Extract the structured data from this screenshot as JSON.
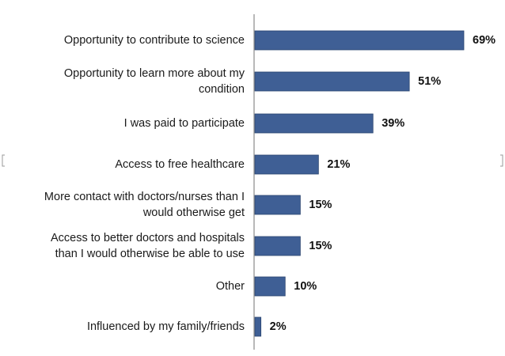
{
  "chart_data": {
    "type": "bar",
    "orientation": "horizontal",
    "categories": [
      [
        "Opportunity to contribute to science"
      ],
      [
        "Opportunity to learn more about my",
        "condition"
      ],
      [
        "I was paid to participate"
      ],
      [
        "Access to free healthcare"
      ],
      [
        "More contact with doctors/nurses than I",
        "would otherwise get"
      ],
      [
        "Access to better doctors and hospitals",
        "than I would otherwise be able to use"
      ],
      [
        "Other"
      ],
      [
        "Influenced by my family/friends"
      ]
    ],
    "values": [
      69,
      51,
      39,
      21,
      15,
      15,
      10,
      2
    ],
    "value_labels": [
      "69%",
      "51%",
      "39%",
      "21%",
      "15%",
      "15%",
      "10%",
      "2%"
    ],
    "unit": "%",
    "xlim": [
      0,
      69
    ],
    "grid": false,
    "legend": "none",
    "bar_color": "#3f5f95",
    "bar_edge_color": "#2c4670"
  }
}
